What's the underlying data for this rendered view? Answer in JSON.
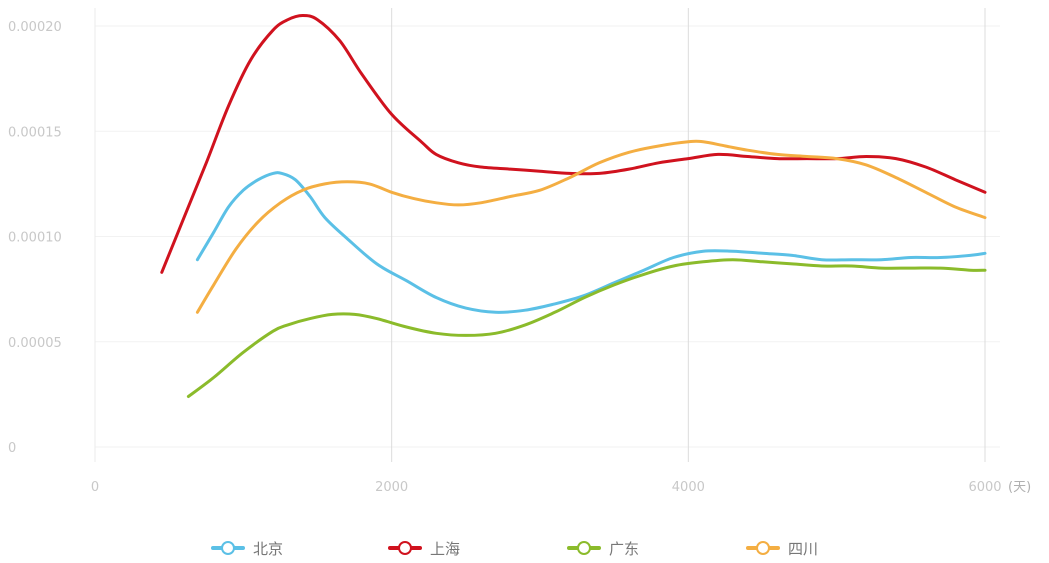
{
  "chart_data": {
    "type": "line",
    "x_unit": "(天)",
    "xlim": [
      0,
      6000
    ],
    "ylim": [
      0,
      0.0002
    ],
    "x_ticks": [
      0,
      2000,
      4000,
      6000
    ],
    "x_tick_labels": [
      "0",
      "2000",
      "4000",
      "6000"
    ],
    "y_ticks": [
      0,
      5e-05,
      0.0001,
      0.00015,
      0.0002
    ],
    "y_tick_labels": [
      "0",
      "0.00005",
      "0.00010",
      "0.00015",
      "0.00020"
    ],
    "legend_position": "bottom",
    "series": [
      {
        "name": "北京",
        "color": "#5bc0e6",
        "x": [
          690,
          800,
          900,
          1000,
          1100,
          1200,
          1260,
          1350,
          1450,
          1550,
          1700,
          1900,
          2100,
          2300,
          2500,
          2700,
          2900,
          3100,
          3300,
          3500,
          3700,
          3900,
          4100,
          4300,
          4500,
          4700,
          4900,
          5100,
          5300,
          5500,
          5700,
          5900,
          6000
        ],
        "y": [
          8.9e-05,
          0.000102,
          0.000114,
          0.000122,
          0.000127,
          0.00013,
          0.00013,
          0.000127,
          0.000119,
          0.000109,
          9.9e-05,
          8.7e-05,
          7.9e-05,
          7.1e-05,
          6.6e-05,
          6.4e-05,
          6.5e-05,
          6.8e-05,
          7.2e-05,
          7.8e-05,
          8.4e-05,
          9e-05,
          9.3e-05,
          9.3e-05,
          9.2e-05,
          9.1e-05,
          8.9e-05,
          8.9e-05,
          8.9e-05,
          9e-05,
          9e-05,
          9.1e-05,
          9.2e-05
        ]
      },
      {
        "name": "上海",
        "color": "#d0121e",
        "x": [
          450,
          600,
          750,
          900,
          1050,
          1200,
          1300,
          1400,
          1500,
          1650,
          1800,
          2000,
          2200,
          2300,
          2450,
          2600,
          2800,
          3000,
          3200,
          3400,
          3600,
          3800,
          4000,
          4200,
          4400,
          4600,
          4800,
          5000,
          5200,
          5400,
          5600,
          5800,
          6000
        ],
        "y": [
          8.3e-05,
          0.000109,
          0.000135,
          0.000162,
          0.000184,
          0.000198,
          0.000203,
          0.000205,
          0.000203,
          0.000193,
          0.000177,
          0.000158,
          0.000145,
          0.000139,
          0.000135,
          0.000133,
          0.000132,
          0.000131,
          0.00013,
          0.00013,
          0.000132,
          0.000135,
          0.000137,
          0.000139,
          0.000138,
          0.000137,
          0.000137,
          0.000137,
          0.000138,
          0.000137,
          0.000133,
          0.000127,
          0.000121
        ]
      },
      {
        "name": "广东",
        "color": "#8bbb2b",
        "x": [
          630,
          800,
          1000,
          1200,
          1300,
          1450,
          1600,
          1750,
          1900,
          2100,
          2300,
          2500,
          2700,
          2900,
          3100,
          3300,
          3500,
          3700,
          3900,
          4100,
          4300,
          4500,
          4700,
          4900,
          5100,
          5300,
          5500,
          5700,
          5900,
          6000
        ],
        "y": [
          2.4e-05,
          3.3e-05,
          4.5e-05,
          5.5e-05,
          5.8e-05,
          6.1e-05,
          6.3e-05,
          6.3e-05,
          6.1e-05,
          5.7e-05,
          5.4e-05,
          5.3e-05,
          5.4e-05,
          5.8e-05,
          6.4e-05,
          7.1e-05,
          7.7e-05,
          8.2e-05,
          8.6e-05,
          8.8e-05,
          8.9e-05,
          8.8e-05,
          8.7e-05,
          8.6e-05,
          8.6e-05,
          8.5e-05,
          8.5e-05,
          8.5e-05,
          8.4e-05,
          8.4e-05
        ]
      },
      {
        "name": "四川",
        "color": "#f4ae42",
        "x": [
          690,
          800,
          950,
          1100,
          1250,
          1400,
          1550,
          1700,
          1850,
          2000,
          2150,
          2300,
          2450,
          2600,
          2800,
          3000,
          3200,
          3400,
          3600,
          3800,
          4000,
          4100,
          4250,
          4400,
          4600,
          4800,
          5000,
          5200,
          5400,
          5600,
          5800,
          6000
        ],
        "y": [
          6.4e-05,
          7.7e-05,
          9.4e-05,
          0.000107,
          0.000116,
          0.000122,
          0.000125,
          0.000126,
          0.000125,
          0.000121,
          0.000118,
          0.000116,
          0.000115,
          0.000116,
          0.000119,
          0.000122,
          0.000128,
          0.000135,
          0.00014,
          0.000143,
          0.000145,
          0.000145,
          0.000143,
          0.000141,
          0.000139,
          0.000138,
          0.000137,
          0.000134,
          0.000128,
          0.000121,
          0.000114,
          0.000109
        ]
      }
    ]
  }
}
